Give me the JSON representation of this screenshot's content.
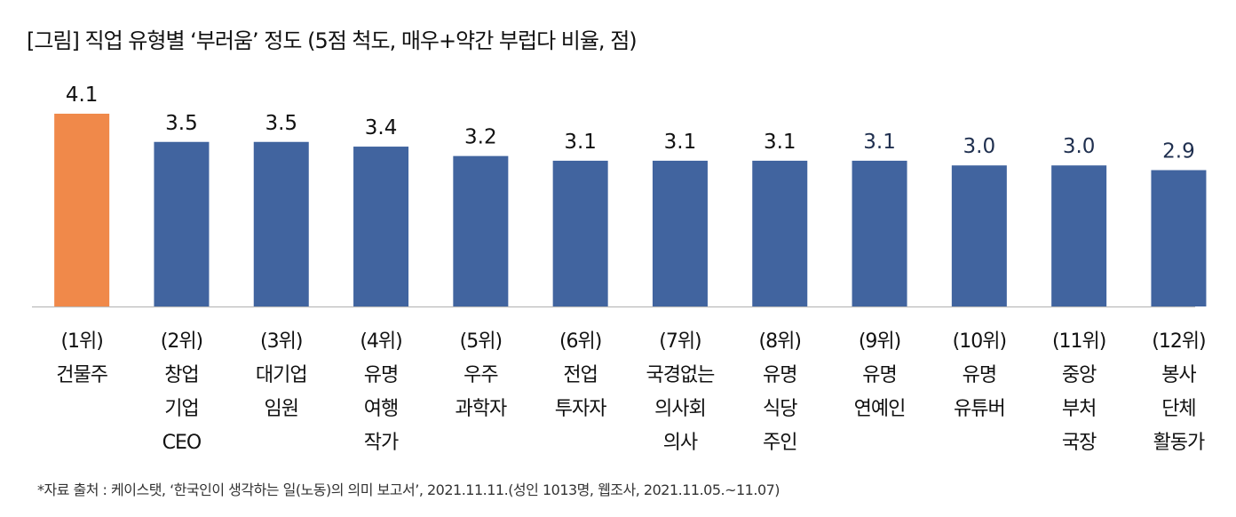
{
  "chart_data": {
    "type": "bar",
    "title": "[그림] 직업 유형별 ‘부러움’ 정도 (5점 척도, 매우+약간 부럽다 비율, 점)",
    "categories": [
      [
        "(1위)",
        "건물주"
      ],
      [
        "(2위)",
        "창업",
        "기업",
        "CEO"
      ],
      [
        "(3위)",
        "대기업",
        "임원"
      ],
      [
        "(4위)",
        "유명",
        "여행",
        "작가"
      ],
      [
        "(5위)",
        "우주",
        "과학자"
      ],
      [
        "(6위)",
        "전업",
        "투자자"
      ],
      [
        "(7위)",
        "국경없는",
        "의사회",
        "의사"
      ],
      [
        "(8위)",
        "유명",
        "식당",
        "주인"
      ],
      [
        "(9위)",
        "유명",
        "연예인"
      ],
      [
        "(10위)",
        "유명",
        "유튜버"
      ],
      [
        "(11위)",
        "중앙",
        "부처",
        "국장"
      ],
      [
        "(12위)",
        "봉사",
        "단체",
        "활동가"
      ]
    ],
    "values": [
      4.1,
      3.5,
      3.5,
      3.4,
      3.2,
      3.1,
      3.1,
      3.1,
      3.1,
      3.0,
      3.0,
      2.9
    ],
    "value_labels": [
      "4.1",
      "3.5",
      "3.5",
      "3.4",
      "3.2",
      "3.1",
      "3.1",
      "3.1",
      "3.1",
      "3.0",
      "3.0",
      "2.9"
    ],
    "highlight_color": "#F0894A",
    "bar_color": "#41649F",
    "ylim": [
      0,
      4.1
    ],
    "xlabel": "",
    "ylabel": "",
    "grid": false,
    "legend": "none"
  },
  "footnote": "*자료 출처 : 케이스탯, ‘한국인이 생각하는 일(노동)의 의미 보고서’, 2021.11.11.(성인 1013명, 웹조사, 2021.11.05.~11.07)"
}
